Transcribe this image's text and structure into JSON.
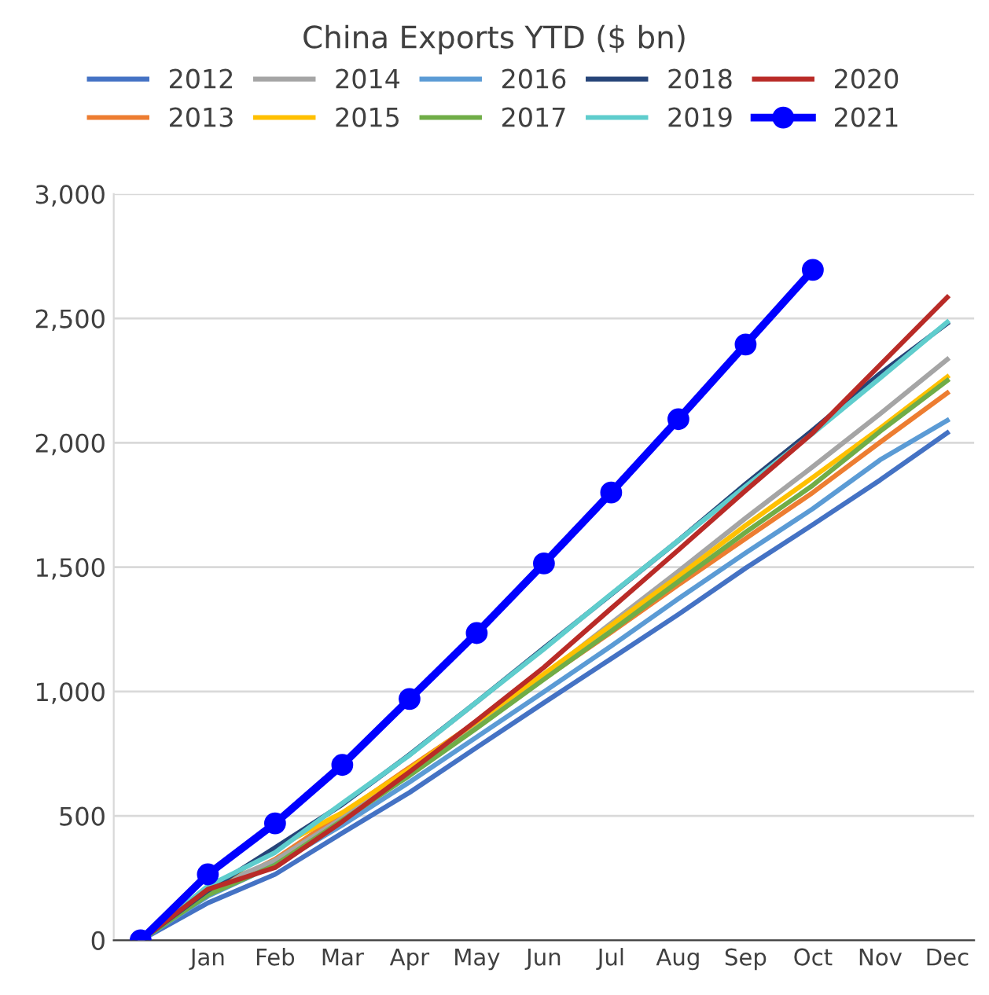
{
  "chart_data": {
    "type": "line",
    "title": "China Exports YTD ($ bn)",
    "categories": [
      null,
      "Jan",
      "Feb",
      "Mar",
      "Apr",
      "May",
      "Jun",
      "Jul",
      "Aug",
      "Sep",
      "Oct",
      "Nov",
      "Dec"
    ],
    "ylim": [
      0,
      3000
    ],
    "yticks": [
      {
        "value": 0,
        "label": "0"
      },
      {
        "value": 500,
        "label": "500"
      },
      {
        "value": 1000,
        "label": "1,000"
      },
      {
        "value": 1500,
        "label": "1,500"
      },
      {
        "value": 2000,
        "label": "2,000"
      },
      {
        "value": 2500,
        "label": "2,500"
      },
      {
        "value": 3000,
        "label": "3,000"
      }
    ],
    "grid": "y",
    "legend": "top",
    "line_style": "solid",
    "series": [
      {
        "name": "2012",
        "color": "#4472c4",
        "marker": "none",
        "values": [
          0,
          150,
          265,
          431,
          594,
          775,
          955,
          1132,
          1310,
          1496,
          1671,
          1850,
          2040
        ]
      },
      {
        "name": "2013",
        "color": "#ed7d31",
        "marker": "none",
        "values": [
          0,
          187,
          326,
          508,
          695,
          878,
          1052,
          1238,
          1429,
          1615,
          1800,
          2002,
          2200
        ]
      },
      {
        "name": "2014",
        "color": "#a5a5a5",
        "marker": "none",
        "values": [
          0,
          207,
          321,
          491,
          680,
          875,
          1062,
          1275,
          1483,
          1697,
          1904,
          2116,
          2335
        ]
      },
      {
        "name": "2015",
        "color": "#ffc000",
        "marker": "none",
        "values": [
          0,
          200,
          369,
          513,
          689,
          879,
          1071,
          1266,
          1463,
          1668,
          1861,
          2058,
          2265
        ]
      },
      {
        "name": "2016",
        "color": "#5b9bd5",
        "marker": "none",
        "values": [
          0,
          177,
          303,
          463,
          636,
          817,
          999,
          1183,
          1373,
          1557,
          1735,
          1931,
          2090
        ]
      },
      {
        "name": "2017",
        "color": "#70ad47",
        "marker": "none",
        "values": [
          0,
          182,
          302,
          482,
          662,
          853,
          1049,
          1243,
          1442,
          1640,
          1829,
          2046,
          2250
        ]
      },
      {
        "name": "2018",
        "color": "#264478",
        "marker": "none",
        "values": [
          0,
          200,
          372,
          546,
          746,
          958,
          1175,
          1390,
          1607,
          1834,
          2051,
          2278,
          2480
        ]
      },
      {
        "name": "2019",
        "color": "#5fcdcd",
        "marker": "none",
        "values": [
          0,
          218,
          353,
          551,
          744,
          958,
          1171,
          1392,
          1607,
          1825,
          2038,
          2260,
          2485
        ]
      },
      {
        "name": "2020",
        "color": "#b92b27",
        "marker": "none",
        "values": [
          0,
          205,
          292,
          477,
          677,
          884,
          1097,
          1334,
          1569,
          1808,
          2040,
          2313,
          2585
        ]
      },
      {
        "name": "2021",
        "color": "#0000ff",
        "marker": "circle",
        "values": [
          0,
          265,
          470,
          705,
          970,
          1235,
          1515,
          1800,
          2095,
          2395,
          2695,
          null,
          null
        ]
      }
    ]
  }
}
